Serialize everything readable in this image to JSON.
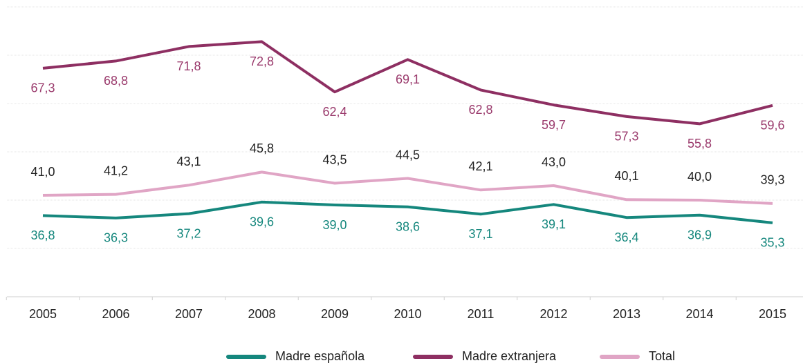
{
  "chart_data": {
    "type": "line",
    "categories": [
      "2005",
      "2006",
      "2007",
      "2008",
      "2009",
      "2010",
      "2011",
      "2012",
      "2013",
      "2014",
      "2015"
    ],
    "series": [
      {
        "name": "Madre española",
        "color": "#15877d",
        "label_color": "#15877d",
        "values": [
          36.8,
          36.3,
          37.2,
          39.6,
          39.0,
          38.6,
          37.1,
          39.1,
          36.4,
          36.9,
          35.3
        ],
        "value_labels": [
          "36,8",
          "36,3",
          "37,2",
          "39,6",
          "39,0",
          "38,6",
          "37,1",
          "39,1",
          "36,4",
          "36,9",
          "35,3"
        ]
      },
      {
        "name": "Madre extranjera",
        "color": "#8e2f62",
        "label_color": "#9a3a6c",
        "values": [
          67.3,
          68.8,
          71.8,
          72.8,
          62.4,
          69.1,
          62.8,
          59.7,
          57.3,
          55.8,
          59.6
        ],
        "value_labels": [
          "67,3",
          "68,8",
          "71,8",
          "72,8",
          "62,4",
          "69,1",
          "62,8",
          "59,7",
          "57,3",
          "55,8",
          "59,6"
        ]
      },
      {
        "name": "Total",
        "color": "#e0a5c5",
        "label_color": "#222222",
        "values": [
          41.0,
          41.2,
          43.1,
          45.8,
          43.5,
          44.5,
          42.1,
          43.0,
          40.1,
          40.0,
          39.3
        ],
        "value_labels": [
          "41,0",
          "41,2",
          "43,1",
          "45,8",
          "43,5",
          "44,5",
          "42,1",
          "43,0",
          "40,1",
          "40,0",
          "39,3"
        ]
      }
    ],
    "ylim": [
      20,
      80
    ],
    "yticks": [
      20,
      30,
      40,
      50,
      60,
      70,
      80
    ],
    "grid": true,
    "legend": "bottom"
  }
}
